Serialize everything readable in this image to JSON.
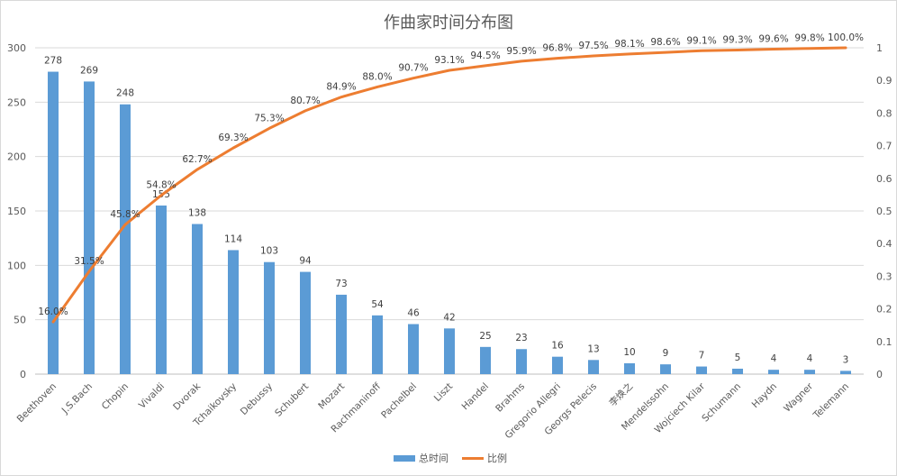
{
  "chart_data": {
    "type": "bar",
    "title": "作曲家时间分布图",
    "categories": [
      "Beethoven",
      "J.S.Bach",
      "Chopin",
      "Vivaldi",
      "Dvorak",
      "Tchaikovsky",
      "Debussy",
      "Schubert",
      "Mozart",
      "Rachmaninoff",
      "Pachelbel",
      "Liszt",
      "Handel",
      "Brahms",
      "Gregorio Allegri",
      "Georgs Pelecis",
      "李焕之",
      "Mendelssohn",
      "Wojciech Kilar",
      "Schumann",
      "Haydn",
      "Wagner",
      "Telemann"
    ],
    "series": [
      {
        "name": "总时间",
        "type": "bar",
        "axis": "left",
        "color": "#5B9BD5",
        "values": [
          278,
          269,
          248,
          155,
          138,
          114,
          103,
          94,
          73,
          54,
          46,
          42,
          25,
          23,
          16,
          13,
          10,
          9,
          7,
          5,
          4,
          4,
          3
        ]
      },
      {
        "name": "比例",
        "type": "line",
        "axis": "right",
        "color": "#ED7D31",
        "values": [
          0.16,
          0.315,
          0.458,
          0.548,
          0.627,
          0.693,
          0.753,
          0.807,
          0.849,
          0.88,
          0.907,
          0.931,
          0.945,
          0.959,
          0.968,
          0.975,
          0.981,
          0.986,
          0.991,
          0.993,
          0.996,
          0.998,
          1.0
        ],
        "labels": [
          "16.0%",
          "31.5%",
          "45.8%",
          "54.8%",
          "62.7%",
          "69.3%",
          "75.3%",
          "80.7%",
          "84.9%",
          "88.0%",
          "90.7%",
          "93.1%",
          "94.5%",
          "95.9%",
          "96.8%",
          "97.5%",
          "98.1%",
          "98.6%",
          "99.1%",
          "99.3%",
          "99.6%",
          "99.8%",
          "100.0%"
        ]
      }
    ],
    "y_left": {
      "min": 0,
      "max": 300,
      "ticks": [
        "0",
        "50",
        "100",
        "150",
        "200",
        "250",
        "300"
      ]
    },
    "y_right": {
      "min": 0,
      "max": 1,
      "ticks": [
        "0",
        "0.1",
        "0.2",
        "0.3",
        "0.4",
        "0.5",
        "0.6",
        "0.7",
        "0.8",
        "0.9",
        "1"
      ]
    },
    "grid": true,
    "legend": "bottom"
  }
}
